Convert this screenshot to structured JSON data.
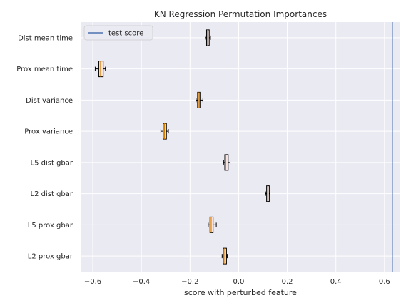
{
  "chart_data": {
    "type": "boxplot",
    "orientation": "horizontal",
    "title": "KN Regression Permutation Importances",
    "xlabel": "score with perturbed feature",
    "ylabel": "",
    "xlim": [
      -0.65,
      0.665
    ],
    "xticks": [
      -0.6,
      -0.4,
      -0.2,
      0.0,
      0.2,
      0.4,
      0.6
    ],
    "xtick_labels": [
      "−0.6",
      "−0.4",
      "−0.2",
      "0.0",
      "0.2",
      "0.4",
      "0.6"
    ],
    "grid": true,
    "legend": {
      "position": "top-left",
      "entries": [
        "test score"
      ]
    },
    "colors": {
      "background": "#eaeaf2",
      "grid": "#ffffff",
      "box_fill": "#f6e3df",
      "box_edge": "#000000",
      "median": "#d97f00",
      "test_score_line": "#4c72b0"
    },
    "test_score": 0.632,
    "features": [
      {
        "label": "Dist mean time",
        "whislo": -0.137,
        "q1": -0.132,
        "median": -0.128,
        "q3": -0.121,
        "whishi": -0.116
      },
      {
        "label": "Prox mean time",
        "whislo": -0.59,
        "q1": -0.575,
        "median": -0.568,
        "q3": -0.557,
        "whishi": -0.548
      },
      {
        "label": "Dist variance",
        "whislo": -0.175,
        "q1": -0.169,
        "median": -0.163,
        "q3": -0.159,
        "whishi": -0.147
      },
      {
        "label": "Prox variance",
        "whislo": -0.32,
        "q1": -0.31,
        "median": -0.305,
        "q3": -0.297,
        "whishi": -0.289
      },
      {
        "label": "L5 dist gbar",
        "whislo": -0.062,
        "q1": -0.057,
        "median": -0.053,
        "q3": -0.043,
        "whishi": -0.035
      },
      {
        "label": "L2 dist gbar",
        "whislo": 0.111,
        "q1": 0.115,
        "median": 0.12,
        "q3": 0.126,
        "whishi": 0.129
      },
      {
        "label": "L5 prox gbar",
        "whislo": -0.125,
        "q1": -0.118,
        "median": -0.113,
        "q3": -0.105,
        "whishi": -0.092
      },
      {
        "label": "L2 prox gbar",
        "whislo": -0.068,
        "q1": -0.063,
        "median": -0.057,
        "q3": -0.05,
        "whishi": -0.047
      }
    ]
  }
}
